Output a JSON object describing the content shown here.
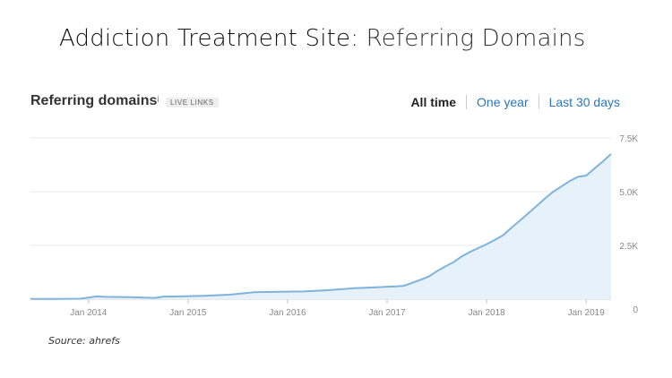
{
  "page": {
    "title_main": "Addiction Treatment Site:",
    "title_accent": " Referring Domains",
    "source": "Source: ahrefs"
  },
  "widget": {
    "title": "Referring domains",
    "info_glyph": "i",
    "badge": "LIVE LINKS",
    "range_tabs": [
      {
        "label": "All time",
        "active": true
      },
      {
        "label": "One year",
        "active": false
      },
      {
        "label": "Last 30 days",
        "active": false
      }
    ]
  },
  "colors": {
    "line": "#7fb3dc",
    "fill": "#e6f1fa",
    "grid": "#e8e8e8",
    "tick": "#888888",
    "link": "#2b75c0"
  },
  "chart_data": {
    "type": "area",
    "title": "Referring domains",
    "xlabel": "",
    "ylabel": "",
    "x_ticks": [
      "Jan 2014",
      "Jan 2015",
      "Jan 2016",
      "Jan 2017",
      "Jan 2018",
      "Jan 2019"
    ],
    "y_ticks": [
      "0",
      "2.5K",
      "5.0K",
      "7.5K"
    ],
    "ylim": [
      0,
      7500
    ],
    "xlim": [
      "2013-06",
      "2019-04"
    ],
    "grid": true,
    "legend": "none",
    "series": [
      {
        "x": [
          "2013-06",
          "2013-09",
          "2013-12",
          "2014-02",
          "2014-03",
          "2014-06",
          "2014-09",
          "2014-10",
          "2014-12",
          "2015-03",
          "2015-06",
          "2015-09",
          "2015-12",
          "2016-03",
          "2016-06",
          "2016-09",
          "2016-12",
          "2017-01",
          "2017-02",
          "2017-03",
          "2017-04",
          "2017-05",
          "2017-06",
          "2017-07",
          "2017-08",
          "2017-09",
          "2017-10",
          "2017-11",
          "2017-12",
          "2018-01",
          "2018-02",
          "2018-03",
          "2018-04",
          "2018-05",
          "2018-06",
          "2018-07",
          "2018-08",
          "2018-09",
          "2018-10",
          "2018-11",
          "2018-12",
          "2019-01",
          "2019-02",
          "2019-03",
          "2019-04"
        ],
        "values": [
          10,
          10,
          20,
          130,
          110,
          90,
          60,
          120,
          130,
          160,
          210,
          320,
          340,
          360,
          420,
          510,
          560,
          580,
          590,
          620,
          760,
          900,
          1050,
          1300,
          1520,
          1720,
          1990,
          2200,
          2380,
          2560,
          2760,
          2980,
          3330,
          3660,
          3990,
          4330,
          4670,
          4990,
          5240,
          5490,
          5690,
          5750,
          6080,
          6400,
          6760
        ]
      }
    ]
  }
}
